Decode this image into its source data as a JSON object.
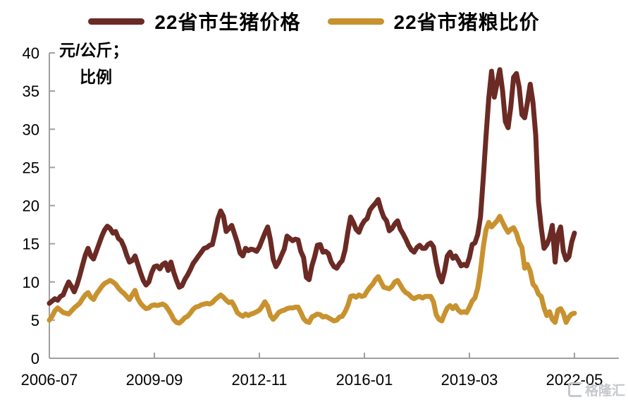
{
  "watermark": {
    "text": "格隆汇",
    "logo": "gelonghui-logo"
  },
  "chart_data": {
    "type": "line",
    "title": "",
    "unit_label_line1": "元/公斤；",
    "unit_label_line2": "比例",
    "xlabel": "",
    "ylabel": "元/公斤；比例",
    "ylim": [
      0,
      40
    ],
    "y_ticks": [
      0,
      5,
      10,
      15,
      20,
      25,
      30,
      35,
      40
    ],
    "x_tick_labels": [
      "2006-07",
      "2009-09",
      "2012-11",
      "2016-01",
      "2019-03",
      "2022-05"
    ],
    "x_tick_interval_months": 38,
    "x_range": {
      "start": "2006-07",
      "end": "2022-05",
      "frequency": "monthly"
    },
    "grid": false,
    "legend_position": "top",
    "axis_color": "#A0A0A0",
    "series": [
      {
        "name": "22省市生猪价格",
        "color": "#6B2A24",
        "values": [
          7.2,
          7.5,
          7.8,
          7.6,
          8.1,
          8.3,
          9.2,
          10.0,
          9.4,
          8.7,
          9.6,
          10.8,
          12.2,
          13.5,
          14.4,
          13.4,
          13.0,
          14.0,
          15.0,
          16.0,
          16.8,
          17.3,
          17.0,
          16.4,
          16.6,
          15.7,
          15.4,
          14.6,
          13.5,
          12.6,
          12.8,
          13.4,
          12.3,
          11.2,
          10.2,
          9.6,
          10.0,
          11.2,
          12.0,
          12.1,
          11.7,
          12.3,
          12.5,
          11.5,
          12.6,
          11.3,
          10.2,
          9.3,
          9.5,
          10.3,
          10.9,
          11.6,
          12.4,
          12.9,
          13.4,
          13.9,
          14.4,
          14.5,
          14.8,
          14.9,
          16.5,
          18.3,
          19.3,
          18.6,
          16.6,
          17.0,
          17.4,
          16.3,
          15.2,
          13.8,
          13.4,
          14.4,
          14.1,
          14.3,
          14.2,
          14.0,
          14.6,
          15.5,
          16.4,
          17.2,
          15.5,
          13.0,
          12.0,
          12.6,
          13.5,
          14.3,
          16.0,
          15.7,
          15.4,
          15.6,
          15.5,
          14.0,
          13.2,
          10.6,
          10.3,
          12.1,
          13.3,
          14.8,
          14.9,
          13.9,
          14.0,
          13.7,
          12.6,
          12.0,
          11.8,
          12.4,
          12.8,
          14.2,
          16.5,
          18.5,
          17.8,
          16.9,
          16.5,
          17.4,
          18.0,
          18.3,
          19.4,
          19.9,
          20.3,
          20.8,
          19.5,
          18.5,
          18.0,
          16.7,
          17.0,
          17.6,
          18.0,
          16.9,
          16.3,
          15.6,
          14.8,
          14.2,
          13.9,
          14.5,
          14.8,
          14.4,
          14.4,
          14.9,
          15.1,
          14.6,
          12.5,
          10.8,
          10.0,
          11.4,
          13.4,
          13.9,
          13.1,
          13.4,
          12.8,
          12.1,
          12.3,
          12.1,
          13.2,
          14.9,
          15.1,
          16.2,
          18.5,
          23.5,
          29.0,
          34.0,
          37.6,
          34.2,
          36.0,
          37.8,
          35.0,
          31.0,
          30.2,
          33.0,
          36.8,
          37.3,
          35.5,
          31.9,
          31.5,
          33.5,
          35.9,
          33.5,
          29.2,
          20.5,
          17.1,
          14.4,
          14.9,
          15.8,
          17.4,
          12.6,
          16.2,
          17.2,
          14.0,
          12.9,
          13.3,
          15.2,
          16.4
        ]
      },
      {
        "name": "22省市猪粮比价",
        "color": "#C8922F",
        "values": [
          5.0,
          5.5,
          6.2,
          6.6,
          6.3,
          6.0,
          5.9,
          5.8,
          6.2,
          6.6,
          6.9,
          7.2,
          7.8,
          8.3,
          8.6,
          8.0,
          7.7,
          8.4,
          8.9,
          9.4,
          9.8,
          10.0,
          10.2,
          10.0,
          9.7,
          9.2,
          8.8,
          8.5,
          8.1,
          7.7,
          8.3,
          8.9,
          7.8,
          7.2,
          6.8,
          6.5,
          6.6,
          6.9,
          7.0,
          6.9,
          7.0,
          7.1,
          6.9,
          6.4,
          5.8,
          5.1,
          4.7,
          4.6,
          4.9,
          5.3,
          5.5,
          5.9,
          6.4,
          6.7,
          6.8,
          7.0,
          7.1,
          7.2,
          7.1,
          7.3,
          7.7,
          8.0,
          8.3,
          8.0,
          7.6,
          7.3,
          7.4,
          6.8,
          6.0,
          5.7,
          5.5,
          5.8,
          5.6,
          5.8,
          5.9,
          6.1,
          6.3,
          6.8,
          7.4,
          6.8,
          5.6,
          5.1,
          5.5,
          6.0,
          6.2,
          6.3,
          6.5,
          6.6,
          6.6,
          6.7,
          6.7,
          6.0,
          5.2,
          4.8,
          4.7,
          5.4,
          5.6,
          5.8,
          5.7,
          5.4,
          5.5,
          5.3,
          5.1,
          4.9,
          5.0,
          5.4,
          5.5,
          6.1,
          6.9,
          8.1,
          8.2,
          8.0,
          8.3,
          8.1,
          8.2,
          8.8,
          9.3,
          9.7,
          10.3,
          10.7,
          10.0,
          9.3,
          9.2,
          9.1,
          9.4,
          10.0,
          10.2,
          9.6,
          9.0,
          8.6,
          8.4,
          8.0,
          7.8,
          8.0,
          8.1,
          7.9,
          8.1,
          8.1,
          8.1,
          7.4,
          5.7,
          5.1,
          4.9,
          5.8,
          6.6,
          6.9,
          6.5,
          6.9,
          6.3,
          6.0,
          6.1,
          6.0,
          6.7,
          7.5,
          7.9,
          9.2,
          11.5,
          14.5,
          16.8,
          17.8,
          17.2,
          17.6,
          18.0,
          18.6,
          17.8,
          17.1,
          16.5,
          16.9,
          17.1,
          16.4,
          15.2,
          14.5,
          11.8,
          12.3,
          11.4,
          9.7,
          9.3,
          8.4,
          8.1,
          6.6,
          5.6,
          6.1,
          5.1,
          4.7,
          6.3,
          6.5,
          5.9,
          4.7,
          5.4,
          5.8,
          5.9
        ]
      }
    ]
  }
}
